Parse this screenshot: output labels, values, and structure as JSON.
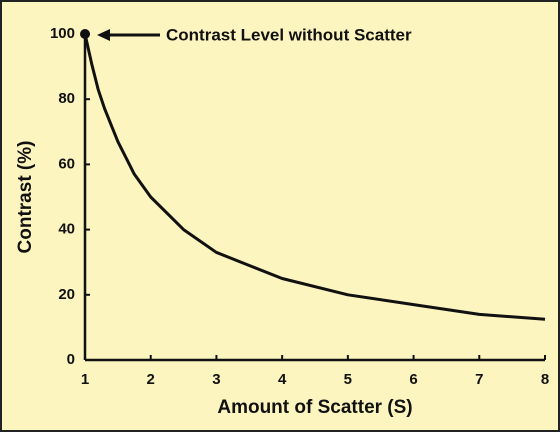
{
  "chart_data": {
    "type": "line",
    "xlabel": "Amount of Scatter (S)",
    "ylabel": "Contrast (%)",
    "annotation": "Contrast Level without Scatter",
    "x": [
      1,
      1.1,
      1.2,
      1.3,
      1.5,
      1.75,
      2,
      2.5,
      3,
      3.5,
      4,
      5,
      6,
      7,
      8
    ],
    "series": [
      {
        "name": "Contrast",
        "color": "#111111",
        "values": [
          100,
          91,
          83,
          77,
          67,
          57,
          50,
          40,
          33,
          29,
          25,
          20,
          17,
          14,
          12.5
        ]
      }
    ],
    "xlim": [
      1,
      8
    ],
    "xticks": [
      1,
      2,
      3,
      4,
      5,
      6,
      7,
      8
    ],
    "ylim": [
      0,
      100
    ],
    "yticks": [
      0,
      20,
      40,
      60,
      80,
      100
    ],
    "background": "#fcf5c0"
  }
}
